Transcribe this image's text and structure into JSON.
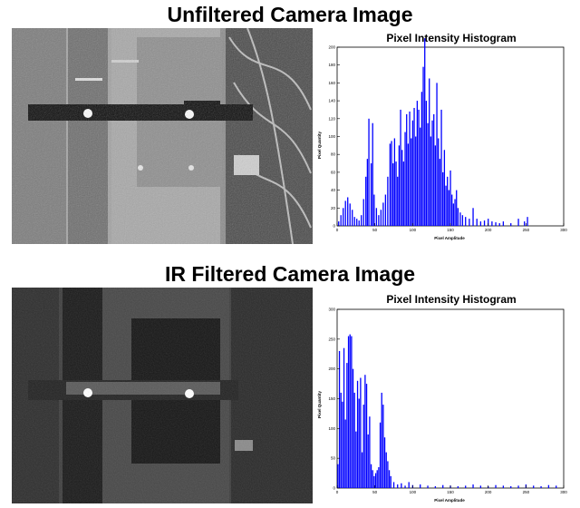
{
  "sections": [
    {
      "title": "Unfiltered Camera Image",
      "photo_icon": "unfiltered-camera-photo"
    },
    {
      "title": "IR Filtered Camera Image",
      "photo_icon": "ir-filtered-camera-photo"
    }
  ],
  "chart_data": [
    {
      "type": "bar",
      "title": "Pixel Intensity Histogram",
      "xlabel": "Pixel Amplitude",
      "ylabel": "Pixel Quantity",
      "xlim": [
        0,
        300
      ],
      "ylim": [
        0,
        200
      ],
      "xticks": [
        0,
        50,
        100,
        150,
        200,
        250,
        300
      ],
      "yticks": [
        0,
        20,
        40,
        60,
        80,
        100,
        120,
        140,
        160,
        180,
        200
      ],
      "color": "#0000ff",
      "grid": false,
      "x": [
        2,
        5,
        8,
        11,
        14,
        17,
        20,
        23,
        26,
        29,
        32,
        35,
        38,
        40,
        42,
        45,
        47,
        49,
        52,
        55,
        58,
        61,
        64,
        67,
        70,
        72,
        74,
        76,
        78,
        80,
        82,
        84,
        86,
        88,
        90,
        92,
        94,
        96,
        98,
        100,
        102,
        104,
        106,
        108,
        110,
        112,
        114,
        116,
        118,
        120,
        122,
        124,
        126,
        128,
        130,
        132,
        134,
        136,
        138,
        140,
        142,
        144,
        146,
        148,
        150,
        152,
        154,
        156,
        158,
        160,
        163,
        166,
        170,
        175,
        180,
        185,
        190,
        195,
        200,
        205,
        210,
        215,
        220,
        230,
        240,
        248,
        252
      ],
      "values": [
        5,
        12,
        20,
        28,
        32,
        25,
        18,
        10,
        8,
        6,
        12,
        30,
        55,
        75,
        120,
        70,
        115,
        35,
        20,
        12,
        18,
        26,
        35,
        55,
        92,
        95,
        70,
        98,
        72,
        55,
        90,
        130,
        85,
        72,
        105,
        125,
        92,
        128,
        98,
        118,
        132,
        100,
        140,
        130,
        110,
        150,
        178,
        210,
        140,
        115,
        165,
        100,
        118,
        125,
        90,
        160,
        98,
        75,
        130,
        60,
        85,
        45,
        55,
        40,
        62,
        35,
        25,
        30,
        40,
        20,
        15,
        12,
        10,
        8,
        20,
        8,
        5,
        6,
        8,
        5,
        4,
        3,
        5,
        3,
        8,
        5,
        10
      ]
    },
    {
      "type": "bar",
      "title": "Pixel Intensity Histogram",
      "xlabel": "Pixel Amplitude",
      "ylabel": "Pixel Quantity",
      "xlim": [
        0,
        300
      ],
      "ylim": [
        0,
        300
      ],
      "xticks": [
        0,
        50,
        100,
        150,
        200,
        250,
        300
      ],
      "yticks": [
        0,
        50,
        100,
        150,
        200,
        250,
        300
      ],
      "color": "#0000ff",
      "grid": false,
      "x": [
        1,
        3,
        5,
        7,
        9,
        11,
        13,
        15,
        17,
        19,
        21,
        23,
        25,
        27,
        29,
        31,
        33,
        35,
        37,
        39,
        41,
        43,
        45,
        47,
        49,
        51,
        53,
        55,
        57,
        59,
        61,
        63,
        65,
        67,
        69,
        71,
        75,
        80,
        85,
        90,
        95,
        100,
        110,
        120,
        130,
        140,
        150,
        160,
        170,
        180,
        190,
        200,
        210,
        220,
        230,
        240,
        250,
        260,
        270,
        280,
        290
      ],
      "values": [
        40,
        230,
        160,
        145,
        235,
        115,
        210,
        255,
        258,
        255,
        200,
        160,
        95,
        180,
        150,
        185,
        60,
        140,
        190,
        175,
        90,
        120,
        40,
        30,
        20,
        25,
        30,
        35,
        110,
        160,
        140,
        85,
        60,
        45,
        30,
        20,
        10,
        6,
        8,
        4,
        10,
        5,
        6,
        4,
        3,
        5,
        4,
        3,
        4,
        6,
        4,
        3,
        5,
        4,
        3,
        4,
        6,
        4,
        3,
        5,
        4
      ]
    }
  ]
}
